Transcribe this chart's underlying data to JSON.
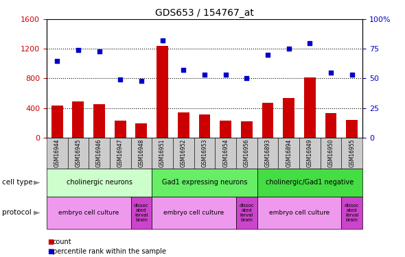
{
  "title": "GDS653 / 154767_at",
  "samples": [
    "GSM16944",
    "GSM16945",
    "GSM16946",
    "GSM16947",
    "GSM16948",
    "GSM16951",
    "GSM16952",
    "GSM16953",
    "GSM16954",
    "GSM16956",
    "GSM16893",
    "GSM16894",
    "GSM16949",
    "GSM16950",
    "GSM16955"
  ],
  "counts": [
    430,
    490,
    450,
    230,
    195,
    1240,
    340,
    310,
    230,
    215,
    470,
    530,
    810,
    330,
    240
  ],
  "percentiles": [
    65,
    74,
    73,
    49,
    48,
    82,
    57,
    53,
    53,
    50,
    70,
    75,
    80,
    55,
    53
  ],
  "bar_color": "#cc0000",
  "dot_color": "#0000cc",
  "ylim_left": [
    0,
    1600
  ],
  "ylim_right": [
    0,
    100
  ],
  "yticks_left": [
    0,
    400,
    800,
    1200,
    1600
  ],
  "yticks_right": [
    0,
    25,
    50,
    75,
    100
  ],
  "cell_type_groups": [
    {
      "label": "cholinergic neurons",
      "start": 0,
      "end": 4,
      "color": "#ccffcc"
    },
    {
      "label": "Gad1 expressing neurons",
      "start": 5,
      "end": 9,
      "color": "#66ee66"
    },
    {
      "label": "cholinergic/Gad1 negative",
      "start": 10,
      "end": 14,
      "color": "#44dd44"
    }
  ],
  "protocol_groups": [
    {
      "label": "embryo cell culture",
      "start": 0,
      "end": 3,
      "color": "#ee99ee"
    },
    {
      "label": "dissoc\nated\nlarval\nbrain",
      "start": 4,
      "end": 4,
      "color": "#dd44dd"
    },
    {
      "label": "embryo cell culture",
      "start": 5,
      "end": 8,
      "color": "#ee99ee"
    },
    {
      "label": "dissoc\nated\nlarval\nbrain",
      "start": 9,
      "end": 9,
      "color": "#dd44dd"
    },
    {
      "label": "embryo cell culture",
      "start": 10,
      "end": 13,
      "color": "#ee99ee"
    },
    {
      "label": "dissoc\nated\nlarval\nbrain",
      "start": 14,
      "end": 14,
      "color": "#dd44dd"
    }
  ],
  "xtick_bg_color": "#cccccc",
  "label_arrow_color": "#888888",
  "legend_count_color": "#cc0000",
  "legend_dot_color": "#0000cc"
}
